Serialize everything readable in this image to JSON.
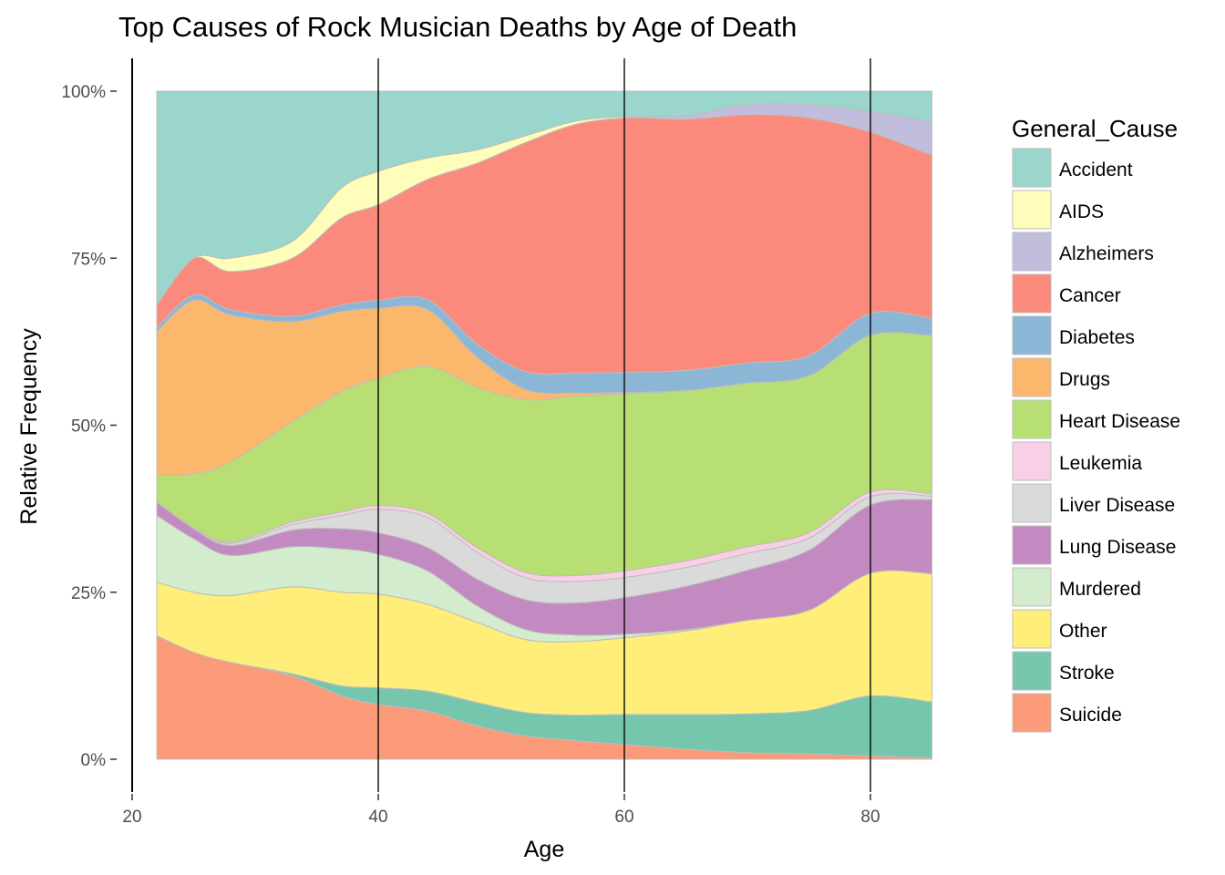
{
  "chart_data": {
    "type": "area",
    "stacked": "fill",
    "title": "Top Causes of Rock Musician Deaths by Age of Death",
    "xlabel": "Age",
    "ylabel": "Relative Frequency",
    "xlim": [
      22,
      85
    ],
    "ylim": [
      0,
      1
    ],
    "x_ticks": [
      20,
      40,
      60,
      80
    ],
    "y_ticks": [
      0,
      0.25,
      0.5,
      0.75,
      1.0
    ],
    "y_tick_labels": [
      "0%",
      "25%",
      "50%",
      "75%",
      "100%"
    ],
    "legend_title": "General_Cause",
    "legend_position": "right",
    "grid": "vertical major lines only",
    "x": [
      22,
      25,
      28,
      33,
      37,
      40,
      44,
      48,
      52,
      56,
      60,
      65,
      70,
      75,
      80,
      85
    ],
    "series": [
      {
        "name": "Suicide",
        "color": "#FB9A78",
        "values": [
          0.185,
          0.16,
          0.145,
          0.125,
          0.095,
          0.082,
          0.072,
          0.05,
          0.035,
          0.028,
          0.022,
          0.015,
          0.01,
          0.008,
          0.005,
          0.002
        ]
      },
      {
        "name": "Stroke",
        "color": "#75C6AD",
        "values": [
          0.0,
          0.0,
          0.0,
          0.003,
          0.015,
          0.025,
          0.03,
          0.035,
          0.035,
          0.038,
          0.045,
          0.052,
          0.058,
          0.065,
          0.088,
          0.083
        ]
      },
      {
        "name": "Other",
        "color": "#FFEE7A",
        "values": [
          0.08,
          0.09,
          0.1,
          0.13,
          0.14,
          0.14,
          0.13,
          0.12,
          0.11,
          0.11,
          0.115,
          0.125,
          0.14,
          0.15,
          0.18,
          0.19
        ]
      },
      {
        "name": "Murdered",
        "color": "#D2ECCD",
        "values": [
          0.1,
          0.08,
          0.06,
          0.06,
          0.065,
          0.06,
          0.05,
          0.025,
          0.015,
          0.01,
          0.005,
          0.002,
          0.0,
          0.0,
          0.0,
          0.0
        ]
      },
      {
        "name": "Lung Disease",
        "color": "#C28AC1",
        "values": [
          0.02,
          0.015,
          0.015,
          0.025,
          0.03,
          0.032,
          0.035,
          0.04,
          0.045,
          0.048,
          0.055,
          0.065,
          0.075,
          0.09,
          0.1,
          0.11
        ]
      },
      {
        "name": "Liver Disease",
        "color": "#DADADA",
        "values": [
          0.0,
          0.002,
          0.003,
          0.008,
          0.02,
          0.035,
          0.045,
          0.04,
          0.033,
          0.032,
          0.03,
          0.028,
          0.025,
          0.018,
          0.012,
          0.005
        ]
      },
      {
        "name": "Leukemia",
        "color": "#F8CFE4",
        "values": [
          0.0,
          0.0,
          0.002,
          0.004,
          0.005,
          0.006,
          0.006,
          0.007,
          0.008,
          0.009,
          0.01,
          0.01,
          0.01,
          0.008,
          0.007,
          0.003
        ]
      },
      {
        "name": "Heart Disease",
        "color": "#B8DF74",
        "values": [
          0.04,
          0.08,
          0.12,
          0.15,
          0.18,
          0.19,
          0.22,
          0.24,
          0.26,
          0.268,
          0.265,
          0.255,
          0.245,
          0.235,
          0.23,
          0.235
        ]
      },
      {
        "name": "Drugs",
        "color": "#FBB76B",
        "values": [
          0.215,
          0.26,
          0.22,
          0.15,
          0.12,
          0.105,
          0.085,
          0.045,
          0.015,
          0.005,
          0.002,
          0.0,
          0.0,
          0.0,
          0.0,
          0.0
        ]
      },
      {
        "name": "Diabetes",
        "color": "#8CB6D5",
        "values": [
          0.006,
          0.008,
          0.008,
          0.008,
          0.01,
          0.012,
          0.015,
          0.02,
          0.027,
          0.03,
          0.03,
          0.03,
          0.03,
          0.03,
          0.032,
          0.025
        ]
      },
      {
        "name": "Cancer",
        "color": "#FB8A7D",
        "values": [
          0.034,
          0.055,
          0.057,
          0.087,
          0.13,
          0.143,
          0.18,
          0.27,
          0.345,
          0.372,
          0.381,
          0.376,
          0.372,
          0.356,
          0.266,
          0.242
        ]
      },
      {
        "name": "Alzheimers",
        "color": "#C1BEDD",
        "values": [
          0.0,
          0.0,
          0.0,
          0.0,
          0.0,
          0.0,
          0.0,
          0.0,
          0.0,
          0.0,
          0.0,
          0.005,
          0.015,
          0.02,
          0.03,
          0.05
        ]
      },
      {
        "name": "AIDS",
        "color": "#FFFDBA",
        "values": [
          0.0,
          0.0,
          0.02,
          0.025,
          0.045,
          0.05,
          0.032,
          0.02,
          0.01,
          0.005,
          0.002,
          0.0,
          0.0,
          0.0,
          0.0,
          0.0
        ]
      },
      {
        "name": "Accident",
        "color": "#9AD6CB",
        "values": [
          0.32,
          0.25,
          0.25,
          0.225,
          0.145,
          0.12,
          0.1,
          0.088,
          0.067,
          0.045,
          0.038,
          0.037,
          0.02,
          0.02,
          0.03,
          0.045
        ]
      }
    ],
    "legend_order": [
      "Accident",
      "AIDS",
      "Alzheimers",
      "Cancer",
      "Diabetes",
      "Drugs",
      "Heart Disease",
      "Leukemia",
      "Liver Disease",
      "Lung Disease",
      "Murdered",
      "Other",
      "Stroke",
      "Suicide"
    ]
  }
}
